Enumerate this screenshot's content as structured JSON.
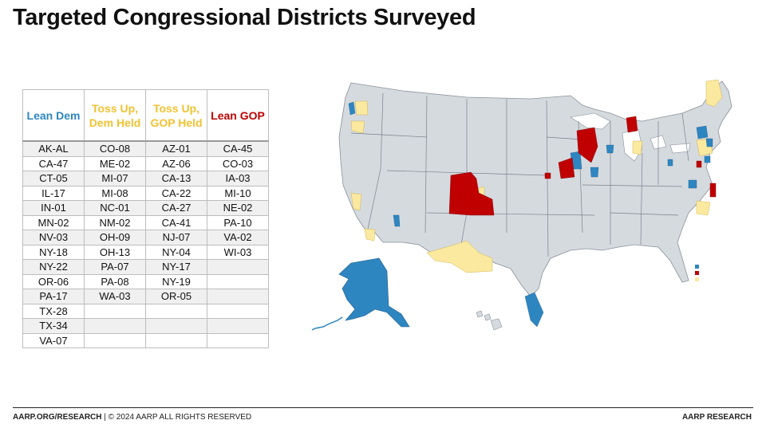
{
  "title": "Targeted Congressional Districts Surveyed",
  "colors": {
    "lean_dem": "#2E86C1",
    "toss_up": "#F2C94C",
    "toss_up_fill": "#FBE9A0",
    "lean_gop": "#C00000",
    "state_fill": "#D5DADF",
    "state_line": "#8A9199"
  },
  "table": {
    "headers": [
      {
        "label": "Lean Dem",
        "color": "#2E86C1"
      },
      {
        "label": "Toss Up, Dem Held",
        "color": "#F2C230"
      },
      {
        "label": "Toss Up, GOP Held",
        "color": "#F2C230"
      },
      {
        "label": "Lean GOP",
        "color": "#C00000"
      }
    ],
    "rows": [
      [
        "AK-AL",
        "CO-08",
        "AZ-01",
        "CA-45"
      ],
      [
        "CA-47",
        "ME-02",
        "AZ-06",
        "CO-03"
      ],
      [
        "CT-05",
        "MI-07",
        "CA-13",
        "IA-03"
      ],
      [
        "IL-17",
        "MI-08",
        "CA-22",
        "MI-10"
      ],
      [
        "IN-01",
        "NC-01",
        "CA-27",
        "NE-02"
      ],
      [
        "MN-02",
        "NM-02",
        "CA-41",
        "PA-10"
      ],
      [
        "NV-03",
        "OH-09",
        "NJ-07",
        "VA-02"
      ],
      [
        "NY-18",
        "OH-13",
        "NY-04",
        "WI-03"
      ],
      [
        "NY-22",
        "PA-07",
        "NY-17",
        ""
      ],
      [
        "OR-06",
        "PA-08",
        "NY-19",
        ""
      ],
      [
        "PA-17",
        "WA-03",
        "OR-05",
        ""
      ],
      [
        "TX-28",
        "",
        "",
        ""
      ],
      [
        "TX-34",
        "",
        "",
        ""
      ],
      [
        "VA-07",
        "",
        "",
        ""
      ]
    ]
  },
  "footer": {
    "site": "AARP.ORG/RESEARCH",
    "rights": " | © 2024 AARP ALL RIGHTS RESERVED",
    "brand": "AARP RESEARCH"
  }
}
